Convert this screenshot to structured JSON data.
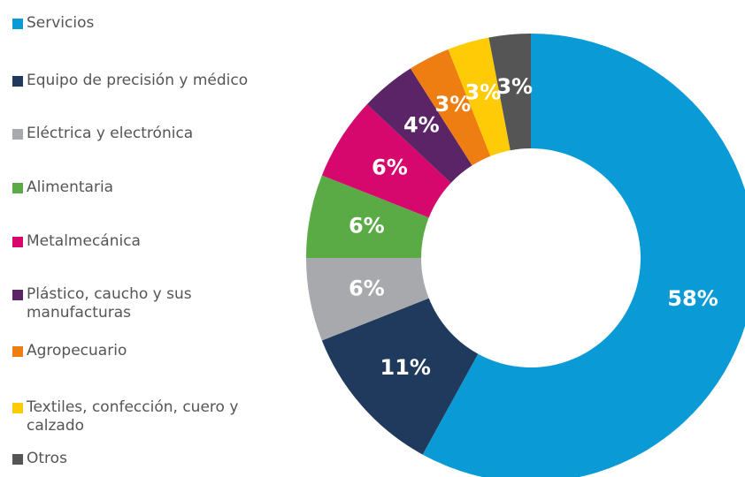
{
  "chart_data": {
    "type": "donut",
    "categories": [
      "Servicios",
      "Equipo de precisión y médico",
      "Eléctrica y electrónica",
      "Alimentaria",
      "Metalmecánica",
      "Plástico, caucho y sus manufacturas",
      "Agropecuario",
      "Textiles, confección, cuero y calzado",
      "Otros"
    ],
    "values": [
      58,
      11,
      6,
      6,
      6,
      4,
      3,
      3,
      3
    ],
    "value_labels": [
      "58%",
      "11%",
      "6%",
      "6%",
      "6%",
      "4%",
      "3%",
      "3%",
      "3%"
    ],
    "colors": [
      "#0a9bd7",
      "#1f3a5c",
      "#a7a9ac",
      "#5aab46",
      "#d6086e",
      "#5b2466",
      "#ee7d12",
      "#fecb06",
      "#555555"
    ]
  }
}
